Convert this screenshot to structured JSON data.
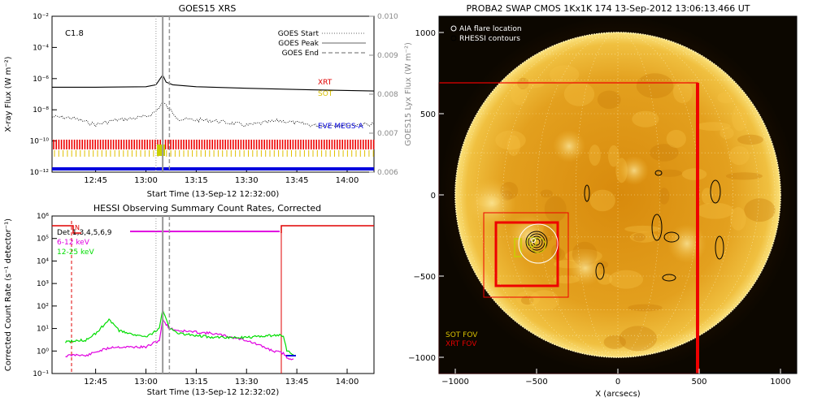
{
  "chart_data": [
    {
      "type": "line",
      "title": "GOES15 XRS",
      "xlabel": "Start Time (13-Sep-12 12:32:00)",
      "ylabel": "X-ray Flux (W m⁻²)",
      "y2label": "GOES15 Lyx Flux (W m⁻²)",
      "xlim": [
        "12:32",
        "14:08"
      ],
      "x_ticks": [
        "12:45",
        "13:00",
        "13:15",
        "13:30",
        "13:45",
        "14:00"
      ],
      "ylim": [
        1e-12,
        0.01
      ],
      "y_scale": "log",
      "y_ticks": [
        "10⁻¹²",
        "10⁻¹⁰",
        "10⁻⁸",
        "10⁻⁶",
        "10⁻⁴",
        "10⁻²"
      ],
      "y2lim": [
        0.006,
        0.01
      ],
      "y2_ticks": [
        "0.006",
        "0.007",
        "0.008",
        "0.009",
        "0.010"
      ],
      "annotation": "C1.8",
      "legend": {
        "placement": "top-right",
        "entries": [
          {
            "label": "GOES Start",
            "style": "dotted"
          },
          {
            "label": "GOES Peak",
            "style": "solid"
          },
          {
            "label": "GOES End",
            "style": "dashed"
          }
        ]
      },
      "instrument_labels": [
        {
          "label": "XRT",
          "color": "#e00000"
        },
        {
          "label": "SOT",
          "color": "#d8c000"
        },
        {
          "label": "EVE MEGS-A",
          "color": "#0000dd"
        }
      ],
      "event_times": {
        "start": "13:03",
        "peak": "13:05",
        "end": "13:07"
      },
      "series": [
        {
          "style": "solid",
          "x": [
            "12:32",
            "12:45",
            "13:00",
            "13:03",
            "13:05",
            "13:06",
            "13:08",
            "13:15",
            "13:30",
            "13:45",
            "14:08"
          ],
          "y": [
            2.8e-07,
            2.8e-07,
            3e-07,
            4e-07,
            1.7e-06,
            6e-07,
            4e-07,
            3e-07,
            2.4e-07,
            2e-07,
            1.6e-07
          ]
        },
        {
          "style": "dotted",
          "x": [
            "12:32",
            "12:38",
            "12:45",
            "12:50",
            "13:00",
            "13:03",
            "13:05",
            "13:10",
            "13:20",
            "13:30",
            "13:40",
            "13:50",
            "14:08"
          ],
          "y": [
            3.5e-09,
            3e-09,
            1.1e-09,
            2e-09,
            3.5e-09,
            8e-09,
            3e-08,
            2.5e-09,
            2e-09,
            1e-09,
            2e-09,
            1e-09,
            1.2e-09
          ]
        }
      ]
    },
    {
      "type": "line",
      "title": "HESSI Observing Summary Count Rates, Corrected",
      "xlabel": "Start Time (13-Sep-12 12:32:02)",
      "ylabel": "Corrected Count Rate (s⁻¹ detector⁻¹)",
      "xlim": [
        "12:32",
        "14:08"
      ],
      "x_ticks": [
        "12:45",
        "13:00",
        "13:15",
        "13:30",
        "13:45",
        "14:00"
      ],
      "ylim": [
        0.1,
        1000000.0
      ],
      "y_scale": "log",
      "y_ticks": [
        "10⁻¹",
        "10⁰",
        "10¹",
        "10²",
        "10³",
        "10⁴",
        "10⁵",
        "10⁶"
      ],
      "flag_label": "N",
      "legend": {
        "placement": "top-left",
        "entries": [
          {
            "label": "Det 1,3,4,5,6,9",
            "color": "#000000"
          },
          {
            "label": "6-12 keV",
            "color": "#e000e0"
          },
          {
            "label": "12-25 keV",
            "color": "#00dd00"
          }
        ]
      },
      "series": [
        {
          "name": "6-12 keV",
          "x": [
            "12:36",
            "12:40",
            "12:42",
            "12:45",
            "12:50",
            "13:00",
            "13:04",
            "13:05",
            "13:07",
            "13:10",
            "13:20",
            "13:30",
            "13:38",
            "13:41",
            "13:42",
            "13:44"
          ],
          "y": [
            0.6,
            0.7,
            0.6,
            0.9,
            1.5,
            1.5,
            3,
            25,
            10,
            8,
            6,
            3,
            1,
            0.8,
            0.5,
            0.45
          ]
        },
        {
          "name": "12-25 keV",
          "x": [
            "12:36",
            "12:40",
            "12:42",
            "12:45",
            "12:49",
            "12:52",
            "13:00",
            "13:04",
            "13:05",
            "13:07",
            "13:10",
            "13:20",
            "13:30",
            "13:38",
            "13:41",
            "13:42",
            "13:44"
          ],
          "y": [
            2.5,
            3,
            3,
            6,
            25,
            8,
            4,
            10,
            70,
            10,
            6,
            4,
            4,
            5,
            5,
            1,
            0.7
          ]
        }
      ]
    },
    {
      "type": "scatter",
      "title": "PROBA2 SWAP CMOS 1Kx1K 174 13-Sep-2012 13:06:13.466 UT",
      "xlabel": "X (arcsecs)",
      "ylabel": "",
      "xlim": [
        -1100,
        1100
      ],
      "ylim": [
        -1100,
        1100
      ],
      "x_ticks": [
        "−1000",
        "−500",
        "0",
        "500",
        "1000"
      ],
      "y_ticks": [
        "−1000",
        "−500",
        "0",
        "500",
        "1000"
      ],
      "legend": {
        "placement": "top-left",
        "entries": [
          {
            "label": "AIA flare location",
            "color": "#ffffff"
          },
          {
            "label": "RHESSI contours",
            "color": "#000000"
          }
        ]
      },
      "fov_labels": [
        {
          "label": "SOT FOV",
          "color": "#d8c000"
        },
        {
          "label": "XRT FOV",
          "color": "#e00000"
        }
      ],
      "points": [
        {
          "x": -520,
          "y": -280
        }
      ]
    }
  ]
}
